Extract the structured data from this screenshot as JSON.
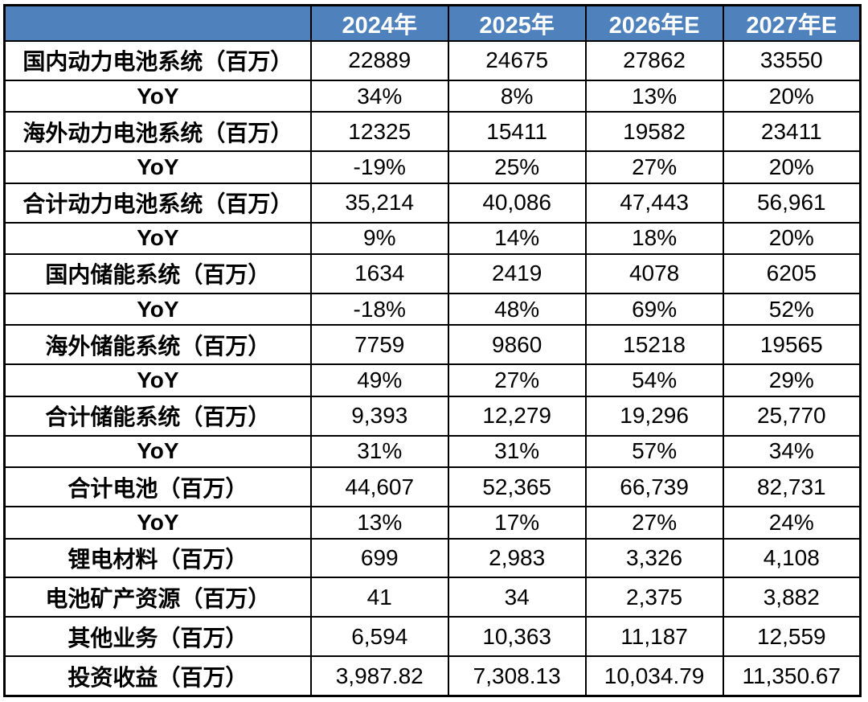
{
  "colors": {
    "header_bg": "#4F81BD",
    "header_text": "#FFFFFF",
    "body_bg": "#FFFFFF",
    "text": "#000000",
    "border": "#000000"
  },
  "chart_data": {
    "type": "table",
    "columns": [
      "",
      "2024年",
      "2025年",
      "2026年E",
      "2027年E"
    ],
    "rows": [
      {
        "label": "国内动力电池系统（百万）",
        "cells": [
          "22889",
          "24675",
          "27862",
          "33550"
        ]
      },
      {
        "label": "YoY",
        "cells": [
          "34%",
          "8%",
          "13%",
          "20%"
        ]
      },
      {
        "label": "海外动力电池系统（百万）",
        "cells": [
          "12325",
          "15411",
          "19582",
          "23411"
        ]
      },
      {
        "label": "YoY",
        "cells": [
          "-19%",
          "25%",
          "27%",
          "20%"
        ]
      },
      {
        "label": "合计动力电池系统（百万）",
        "cells": [
          "35,214",
          "40,086",
          "47,443",
          "56,961"
        ]
      },
      {
        "label": "YoY",
        "cells": [
          "9%",
          "14%",
          "18%",
          "20%"
        ]
      },
      {
        "label": "国内储能系统（百万）",
        "cells": [
          "1634",
          "2419",
          "4078",
          "6205"
        ]
      },
      {
        "label": "YoY",
        "cells": [
          "-18%",
          "48%",
          "69%",
          "52%"
        ]
      },
      {
        "label": "海外储能系统（百万）",
        "cells": [
          "7759",
          "9860",
          "15218",
          "19565"
        ]
      },
      {
        "label": "YoY",
        "cells": [
          "49%",
          "27%",
          "54%",
          "29%"
        ]
      },
      {
        "label": "合计储能系统（百万）",
        "cells": [
          "9,393",
          "12,279",
          "19,296",
          "25,770"
        ]
      },
      {
        "label": "YoY",
        "cells": [
          "31%",
          "31%",
          "57%",
          "34%"
        ]
      },
      {
        "label": "合计电池（百万）",
        "cells": [
          "44,607",
          "52,365",
          "66,739",
          "82,731"
        ]
      },
      {
        "label": "YoY",
        "cells": [
          "13%",
          "17%",
          "27%",
          "24%"
        ]
      },
      {
        "label": "锂电材料（百万）",
        "cells": [
          "699",
          "2,983",
          "3,326",
          "4,108"
        ]
      },
      {
        "label": "电池矿产资源（百万）",
        "cells": [
          "41",
          "34",
          "2,375",
          "3,882"
        ]
      },
      {
        "label": "其他业务（百万）",
        "cells": [
          "6,594",
          "10,363",
          "11,187",
          "12,559"
        ]
      },
      {
        "label": "投资收益（百万）",
        "cells": [
          "3,987.82",
          "7,308.13",
          "10,034.79",
          "11,350.67"
        ]
      }
    ]
  }
}
